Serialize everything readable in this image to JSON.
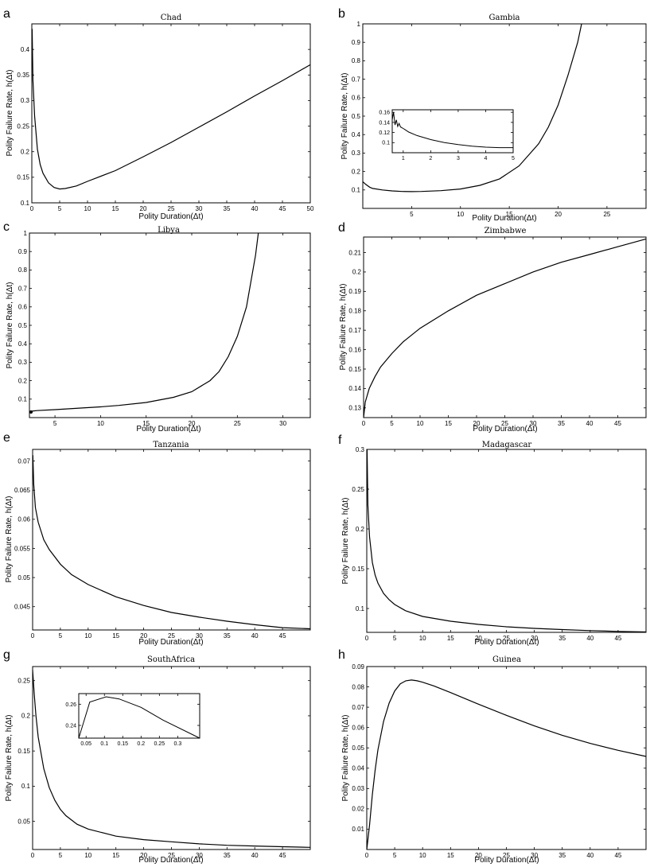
{
  "chart_data": [
    {
      "panel": "a",
      "title": "Chad",
      "type": "line",
      "xlabel": "Polity Duration(Δt)",
      "ylabel": "Polity Failure Rate, h(Δt)",
      "xlim": [
        0,
        50
      ],
      "ylim": [
        0.1,
        0.45
      ],
      "xticks": [
        0,
        5,
        10,
        15,
        20,
        25,
        30,
        35,
        40,
        45,
        50
      ],
      "yticks": [
        0.1,
        0.15,
        0.2,
        0.25,
        0.3,
        0.35,
        0.4
      ],
      "x": [
        0.05,
        0.2,
        0.5,
        1,
        1.5,
        2,
        3,
        4,
        5,
        6,
        8,
        10,
        15,
        20,
        25,
        30,
        35,
        40,
        45,
        50
      ],
      "y": [
        0.44,
        0.34,
        0.27,
        0.205,
        0.175,
        0.158,
        0.139,
        0.13,
        0.127,
        0.128,
        0.133,
        0.142,
        0.163,
        0.19,
        0.218,
        0.248,
        0.278,
        0.309,
        0.339,
        0.37
      ],
      "grid": false
    },
    {
      "panel": "b",
      "title": "Gambia",
      "type": "line",
      "xlabel": "Polity Duration(Δt)",
      "ylabel": "Polity Failure Rate, h(Δt)",
      "xlim": [
        0,
        29
      ],
      "ylim": [
        0,
        1
      ],
      "xticks": [
        5,
        10,
        15,
        20,
        25
      ],
      "yticks": [
        0.1,
        0.2,
        0.3,
        0.4,
        0.5,
        0.6,
        0.7,
        0.8,
        0.9,
        1
      ],
      "x": [
        0,
        0.3,
        0.7,
        1,
        2,
        3,
        4,
        5,
        6,
        8,
        10,
        12,
        14,
        16,
        18,
        19,
        20,
        21,
        22,
        22.4
      ],
      "y": [
        0.145,
        0.13,
        0.115,
        0.108,
        0.1,
        0.095,
        0.092,
        0.091,
        0.092,
        0.096,
        0.105,
        0.125,
        0.16,
        0.23,
        0.35,
        0.44,
        0.56,
        0.72,
        0.9,
        1.0
      ],
      "inset": {
        "xlim": [
          0.6,
          5
        ],
        "ylim": [
          0.08,
          0.165
        ],
        "xticks": [
          1,
          2,
          3,
          4,
          5
        ],
        "yticks": [
          0.1,
          0.12,
          0.14,
          0.16
        ],
        "x": [
          0.6,
          0.65,
          0.7,
          0.75,
          0.8,
          0.85,
          0.9,
          1,
          1.2,
          1.5,
          2,
          2.5,
          3,
          3.5,
          4,
          4.5,
          5
        ],
        "y": [
          0.145,
          0.16,
          0.135,
          0.145,
          0.132,
          0.138,
          0.131,
          0.128,
          0.121,
          0.114,
          0.106,
          0.1,
          0.096,
          0.093,
          0.091,
          0.09,
          0.09
        ]
      },
      "grid": false
    },
    {
      "panel": "c",
      "title": "Libya",
      "type": "line",
      "xlabel": "Polity Duration(Δt)",
      "ylabel": "Polity Failure Rate, h(Δt)",
      "xlim": [
        2.2,
        33
      ],
      "ylim": [
        0,
        1
      ],
      "xticks": [
        5,
        10,
        15,
        20,
        25,
        30
      ],
      "yticks": [
        0.1,
        0.2,
        0.3,
        0.4,
        0.5,
        0.6,
        0.7,
        0.8,
        0.9,
        1
      ],
      "x": [
        2.2,
        2.5,
        3,
        5,
        8,
        10,
        12,
        15,
        18,
        20,
        22,
        23,
        24,
        25,
        26,
        27,
        27.3
      ],
      "y": [
        0.03,
        0.035,
        0.038,
        0.043,
        0.052,
        0.058,
        0.066,
        0.082,
        0.11,
        0.14,
        0.2,
        0.25,
        0.33,
        0.44,
        0.6,
        0.88,
        1.0
      ],
      "grid": false
    },
    {
      "panel": "d",
      "title": "Zimbabwe",
      "type": "line",
      "xlabel": "Polity Duration(Δt)",
      "ylabel": "Polity Failure Rate, h(Δt)",
      "xlim": [
        0,
        50
      ],
      "ylim": [
        0.125,
        0.218
      ],
      "xticks": [
        0,
        5,
        10,
        15,
        20,
        25,
        30,
        35,
        40,
        45
      ],
      "yticks": [
        0.13,
        0.14,
        0.15,
        0.16,
        0.17,
        0.18,
        0.19,
        0.2,
        0.21
      ],
      "x": [
        0,
        0.3,
        1,
        2,
        3,
        5,
        7,
        10,
        15,
        20,
        25,
        30,
        35,
        40,
        45,
        50
      ],
      "y": [
        0.125,
        0.133,
        0.14,
        0.146,
        0.151,
        0.158,
        0.164,
        0.171,
        0.18,
        0.188,
        0.194,
        0.2,
        0.205,
        0.209,
        0.213,
        0.217
      ],
      "grid": false
    },
    {
      "panel": "e",
      "title": "Tanzania",
      "type": "line",
      "xlabel": "Polity Duration(Δt)",
      "ylabel": "Polity Failure Rate, h(Δt)",
      "xlim": [
        0,
        50
      ],
      "ylim": [
        0.041,
        0.072
      ],
      "xticks": [
        0,
        5,
        10,
        15,
        20,
        25,
        30,
        35,
        40,
        45
      ],
      "yticks": [
        0.045,
        0.05,
        0.055,
        0.06,
        0.065,
        0.07
      ],
      "x": [
        0.05,
        0.2,
        0.5,
        1,
        2,
        3,
        5,
        7,
        10,
        15,
        20,
        25,
        30,
        35,
        40,
        45,
        50
      ],
      "y": [
        0.071,
        0.066,
        0.062,
        0.0595,
        0.0565,
        0.0548,
        0.0523,
        0.0505,
        0.0488,
        0.0467,
        0.0452,
        0.044,
        0.0432,
        0.0425,
        0.0419,
        0.0414,
        0.0412
      ],
      "grid": false
    },
    {
      "panel": "f",
      "title": "Madagascar",
      "type": "line",
      "xlabel": "Polity Duration(Δt)",
      "ylabel": "Polity Failure Rate, h(Δt)",
      "xlim": [
        0,
        50
      ],
      "ylim": [
        0.07,
        0.3
      ],
      "xticks": [
        0,
        5,
        10,
        15,
        20,
        25,
        30,
        35,
        40,
        45
      ],
      "yticks": [
        0.1,
        0.15,
        0.2,
        0.25,
        0.3
      ],
      "x": [
        0.05,
        0.2,
        0.5,
        1,
        1.5,
        2,
        3,
        4,
        5,
        7,
        10,
        15,
        20,
        25,
        30,
        35,
        40,
        45,
        50
      ],
      "y": [
        0.3,
        0.23,
        0.19,
        0.158,
        0.142,
        0.132,
        0.119,
        0.111,
        0.105,
        0.097,
        0.09,
        0.084,
        0.08,
        0.077,
        0.075,
        0.0735,
        0.0722,
        0.0712,
        0.0705
      ],
      "grid": false
    },
    {
      "panel": "g",
      "title": "SouthAfrica",
      "type": "line",
      "xlabel": "Polity Duration(Δt)",
      "ylabel": "Polity Failure Rate, h(Δt)",
      "xlim": [
        0,
        50
      ],
      "ylim": [
        0.01,
        0.27
      ],
      "xticks": [
        0,
        5,
        10,
        15,
        20,
        25,
        30,
        35,
        40,
        45
      ],
      "yticks": [
        0.05,
        0.1,
        0.15,
        0.2,
        0.25
      ],
      "x": [
        0,
        0.3,
        0.6,
        1,
        2,
        3,
        4,
        5,
        6,
        8,
        10,
        15,
        20,
        25,
        30,
        35,
        40,
        45,
        50
      ],
      "y": [
        0.265,
        0.23,
        0.2,
        0.17,
        0.125,
        0.098,
        0.08,
        0.067,
        0.058,
        0.046,
        0.039,
        0.029,
        0.024,
        0.021,
        0.018,
        0.016,
        0.015,
        0.014,
        0.013
      ],
      "inset": {
        "xlim": [
          0.03,
          0.36
        ],
        "ylim": [
          0.228,
          0.27
        ],
        "xticks": [
          0.05,
          0.1,
          0.15,
          0.2,
          0.25,
          0.3
        ],
        "yticks": [
          0.24,
          0.26
        ],
        "x": [
          0.03,
          0.06,
          0.105,
          0.14,
          0.2,
          0.26,
          0.36
        ],
        "y": [
          0.228,
          0.262,
          0.267,
          0.265,
          0.257,
          0.245,
          0.228
        ]
      },
      "grid": false
    },
    {
      "panel": "h",
      "title": "Guinea",
      "type": "line",
      "xlabel": "Polity Duration(Δt)",
      "ylabel": "Polity Failure Rate, h(Δt)",
      "xlim": [
        0,
        50
      ],
      "ylim": [
        0,
        0.09
      ],
      "xticks": [
        0,
        5,
        10,
        15,
        20,
        25,
        30,
        35,
        40,
        45
      ],
      "yticks": [
        0.01,
        0.02,
        0.03,
        0.04,
        0.05,
        0.06,
        0.07,
        0.08,
        0.09
      ],
      "x": [
        0,
        0.5,
        1,
        1.5,
        2,
        3,
        4,
        5,
        6,
        7,
        8,
        9,
        10,
        12,
        15,
        20,
        25,
        30,
        35,
        40,
        45,
        50
      ],
      "y": [
        0.0,
        0.012,
        0.027,
        0.039,
        0.049,
        0.063,
        0.072,
        0.078,
        0.0815,
        0.083,
        0.0834,
        0.083,
        0.0823,
        0.0805,
        0.0772,
        0.0715,
        0.066,
        0.0608,
        0.0562,
        0.0522,
        0.0488,
        0.0458
      ],
      "grid": false
    }
  ]
}
